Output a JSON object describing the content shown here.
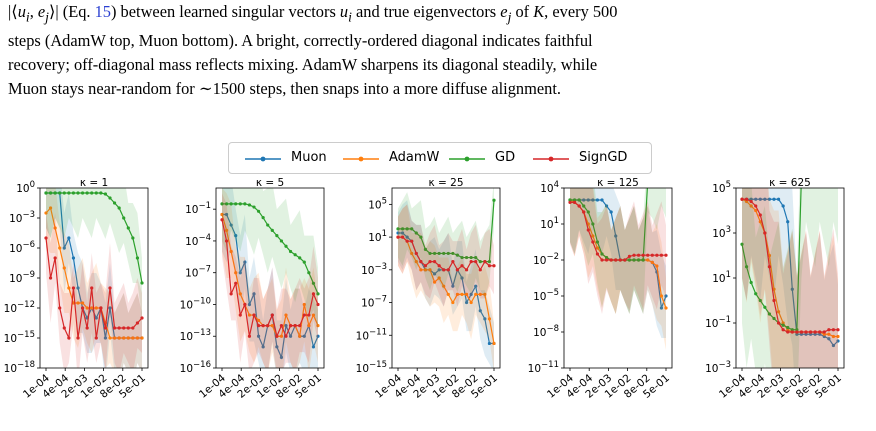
{
  "caption": {
    "line1": "|⟨u_i, e_j⟩| (Eq. 15) between learned singular vectors u_i and true eigenvectors e_j of K, every 500",
    "line2": "steps (AdamW top, Muon bottom). A bright, correctly-ordered diagonal indicates faithful",
    "line3": "recovery; off-diagonal mass reflects mixing. AdamW sharpens its diagonal steadily, while",
    "line4": "Muon stays near-random for ∼1500 steps, then snaps into a more diffuse alignment."
  },
  "legend": [
    {
      "name": "Muon",
      "color": "#1f77b4"
    },
    {
      "name": "AdamW",
      "color": "#ff7f0e"
    },
    {
      "name": "GD",
      "color": "#2ca02c"
    },
    {
      "name": "SignGD",
      "color": "#d62728"
    }
  ],
  "colors": {
    "Muon": "#1f77b4",
    "AdamW": "#ff7f0e",
    "GD": "#2ca02c",
    "SignGD": "#d62728"
  },
  "chart_data": [
    {
      "type": "line",
      "title": "κ = 1",
      "y_log": true,
      "x_ticks": [
        "1e-04",
        "4e-04",
        "2e-03",
        "1e-02",
        "8e-02",
        "5e-01"
      ],
      "y_ticks": [
        "10^0",
        "10^-3",
        "10^-6",
        "10^-9",
        "10^-12",
        "10^-15",
        "10^-18"
      ],
      "ylim_log10": [
        -18,
        0
      ],
      "series": [
        {
          "name": "Muon",
          "log10_values": [
            -0.5,
            -0.5,
            -0.5,
            -0.5,
            -6,
            -5,
            -7,
            -10,
            -12,
            -13,
            -12,
            -13,
            -12,
            -15,
            -12,
            -15,
            -15,
            -15,
            -15,
            -15,
            -15,
            -15
          ]
        },
        {
          "name": "AdamW",
          "log10_values": [
            -2.5,
            -2,
            -4,
            -6,
            -8,
            -10,
            -11.5,
            -11.5,
            -11.5,
            -12,
            -12,
            -12,
            -12,
            -13.5,
            -15,
            -15,
            -15,
            -15,
            -15,
            -15,
            -15,
            -15
          ]
        },
        {
          "name": "GD",
          "log10_values": [
            -0.5,
            -0.5,
            -0.5,
            -0.5,
            -0.5,
            -0.5,
            -0.5,
            -0.5,
            -0.5,
            -0.5,
            -0.5,
            -0.5,
            -0.5,
            -0.6,
            -1,
            -1.5,
            -2,
            -3,
            -4,
            -5,
            -7,
            -9.5
          ]
        },
        {
          "name": "SignGD",
          "log10_values": [
            -5,
            -9,
            -7,
            -12,
            -14,
            -15,
            -10,
            -15,
            -12,
            -14,
            -10,
            -15,
            -12,
            -14,
            -10,
            -14,
            -14,
            -14,
            -14,
            -14,
            -13.5,
            -13
          ]
        }
      ]
    },
    {
      "type": "line",
      "title": "κ = 5",
      "y_log": true,
      "x_ticks": [
        "1e-04",
        "4e-04",
        "2e-03",
        "1e-02",
        "8e-02",
        "5e-01"
      ],
      "y_ticks": [
        "10^-1",
        "10^-4",
        "10^-7",
        "10^-10",
        "10^-13",
        "10^-16"
      ],
      "ylim_log10": [
        -16,
        1
      ],
      "series": [
        {
          "name": "Muon",
          "log10_values": [
            -1.5,
            -1.5,
            -2.5,
            -3.5,
            -7,
            -6,
            -10,
            -9,
            -13,
            -14,
            -12,
            -11,
            -14,
            -15,
            -12,
            -13,
            -12,
            -13,
            -13,
            -12,
            -14,
            -13
          ]
        },
        {
          "name": "AdamW",
          "log10_values": [
            -1.5,
            -3,
            -5,
            -7,
            -9,
            -10,
            -11,
            -11,
            -11.5,
            -12,
            -12,
            -12,
            -13,
            -13,
            -11,
            -12,
            -12,
            -13,
            -10,
            -12,
            -11,
            -12
          ]
        },
        {
          "name": "GD",
          "log10_values": [
            -0.5,
            -0.5,
            -0.5,
            -0.5,
            -0.5,
            -0.5,
            -0.6,
            -0.8,
            -1.2,
            -1.8,
            -2.5,
            -3,
            -3.5,
            -4,
            -4.5,
            -5,
            -5.3,
            -5.6,
            -6,
            -7,
            -8,
            -9
          ]
        },
        {
          "name": "SignGD",
          "log10_values": [
            -2,
            -4,
            -9,
            -8,
            -11,
            -10,
            -13,
            -11,
            -12,
            -12,
            -12,
            -11,
            -13,
            -12,
            -13,
            -12,
            -12,
            -12,
            -11,
            -11,
            -9,
            -10
          ]
        }
      ]
    },
    {
      "type": "line",
      "title": "κ = 25",
      "y_log": true,
      "x_ticks": [
        "1e-04",
        "4e-04",
        "2e-03",
        "1e-02",
        "8e-02",
        "5e-01"
      ],
      "y_ticks": [
        "10^5",
        "10^1",
        "10^-3",
        "10^-7",
        "10^-11",
        "10^-15"
      ],
      "ylim_log10": [
        -15,
        7
      ],
      "series": [
        {
          "name": "Muon",
          "log10_values": [
            1.5,
            1.5,
            1,
            0.5,
            -1,
            -2,
            -3,
            -3,
            -3.5,
            -3,
            -3,
            -3,
            -5,
            -3,
            -4,
            -7,
            -6,
            -5,
            -8,
            -9,
            -12,
            -12
          ]
        },
        {
          "name": "AdamW",
          "log10_values": [
            1,
            1,
            0.5,
            -1,
            -2,
            -3,
            -3,
            -3,
            -4.5,
            -4,
            -5,
            -6,
            -7,
            -6,
            -6,
            -6,
            -7,
            -6,
            -6,
            -6,
            -9,
            -12
          ]
        },
        {
          "name": "GD",
          "log10_values": [
            2,
            2,
            2,
            2,
            1.5,
            1,
            -0.5,
            -1,
            -1,
            -1,
            -1,
            -1,
            -1,
            -1.2,
            -1.5,
            -1.5,
            -1.5,
            -1.5,
            -2,
            -2,
            -2,
            5.5
          ]
        },
        {
          "name": "SignGD",
          "log10_values": [
            1,
            1,
            0.5,
            0.5,
            -1,
            -2,
            -2.5,
            -2,
            -2,
            -2.5,
            -3,
            -3,
            -2,
            -3,
            -2.5,
            -3,
            -2,
            -2,
            -3,
            -2,
            -2.5,
            -2.5
          ]
        }
      ]
    },
    {
      "type": "line",
      "title": "κ = 125",
      "y_log": true,
      "x_ticks": [
        "1e-04",
        "4e-04",
        "2e-03",
        "1e-02",
        "8e-02",
        "5e-01"
      ],
      "y_ticks": [
        "10^4",
        "10^1",
        "10^-2",
        "10^-5",
        "10^-8",
        "10^-11"
      ],
      "ylim_log10": [
        -11,
        4
      ],
      "series": [
        {
          "name": "Muon",
          "log10_values": [
            3,
            3,
            3,
            3,
            3,
            3,
            3,
            3,
            2.5,
            2,
            0,
            -2,
            -2,
            -2,
            -2,
            -2,
            -2,
            -2,
            -2.2,
            -3,
            -6,
            -5
          ]
        },
        {
          "name": "AdamW",
          "log10_values": [
            3,
            2.8,
            2.5,
            2,
            1,
            0,
            -1,
            -1.5,
            -1.8,
            -2,
            -2,
            -2,
            -2,
            -2,
            -2,
            -2,
            -2,
            -2,
            -2.2,
            -2.5,
            -5,
            -6
          ]
        },
        {
          "name": "GD",
          "log10_values": [
            3,
            3,
            3,
            2.5,
            2,
            1,
            -0.5,
            -1.5,
            -1.8,
            -2,
            -2,
            -2,
            -2,
            -2,
            -2,
            -2,
            -2,
            4.5,
            5,
            5,
            5,
            5
          ]
        },
        {
          "name": "SignGD",
          "log10_values": [
            2.8,
            2.8,
            2.5,
            2,
            0.5,
            -0.5,
            -1.5,
            -2,
            -2,
            -2,
            -2,
            -2,
            -2,
            -1.7,
            -1.6,
            -1.6,
            -1.6,
            -1.6,
            -1.6,
            -1.6,
            -1.6,
            -1.6
          ]
        }
      ]
    },
    {
      "type": "line",
      "title": "κ = 625",
      "y_log": true,
      "x_ticks": [
        "1e-04",
        "4e-04",
        "2e-03",
        "1e-02",
        "8e-02",
        "5e-01"
      ],
      "y_ticks": [
        "10^5",
        "10^3",
        "10^1",
        "10^-1",
        "10^-3"
      ],
      "ylim_log10": [
        -3,
        5
      ],
      "series": [
        {
          "name": "Muon",
          "log10_values": [
            4.5,
            4.5,
            4.5,
            4.5,
            4.5,
            4.5,
            4.5,
            4.5,
            4.5,
            4.2,
            3.5,
            0.5,
            -1.5,
            -1.5,
            -1.5,
            -1.5,
            -1.5,
            -1.5,
            -1.6,
            -1.7,
            -2,
            -1.8
          ]
        },
        {
          "name": "AdamW",
          "log10_values": [
            4.5,
            4.4,
            4.2,
            4,
            3.5,
            3,
            2,
            0.5,
            -0.5,
            -1,
            -1.3,
            -1.4,
            -1.4,
            -1.4,
            -1.4,
            -1.4,
            -1.4,
            -1.4,
            -1.5,
            -1.5,
            -1.6,
            -1.6
          ]
        },
        {
          "name": "GD",
          "log10_values": [
            2.5,
            1.5,
            0.8,
            0.3,
            0,
            -0.3,
            -0.6,
            -0.8,
            -1,
            -1.1,
            -1.2,
            -1.3,
            -1.3,
            5.5,
            6,
            6,
            6,
            6,
            6,
            6,
            6,
            6
          ]
        },
        {
          "name": "SignGD",
          "log10_values": [
            4.5,
            4.5,
            4.4,
            4.2,
            3.8,
            3,
            1.5,
            0,
            -1,
            -1.3,
            -1.4,
            -1.4,
            -1.4,
            -1.4,
            -1.4,
            -1.4,
            -1.4,
            -1.4,
            -1.4,
            -1.3,
            -1.3,
            -1.3
          ]
        }
      ]
    }
  ]
}
